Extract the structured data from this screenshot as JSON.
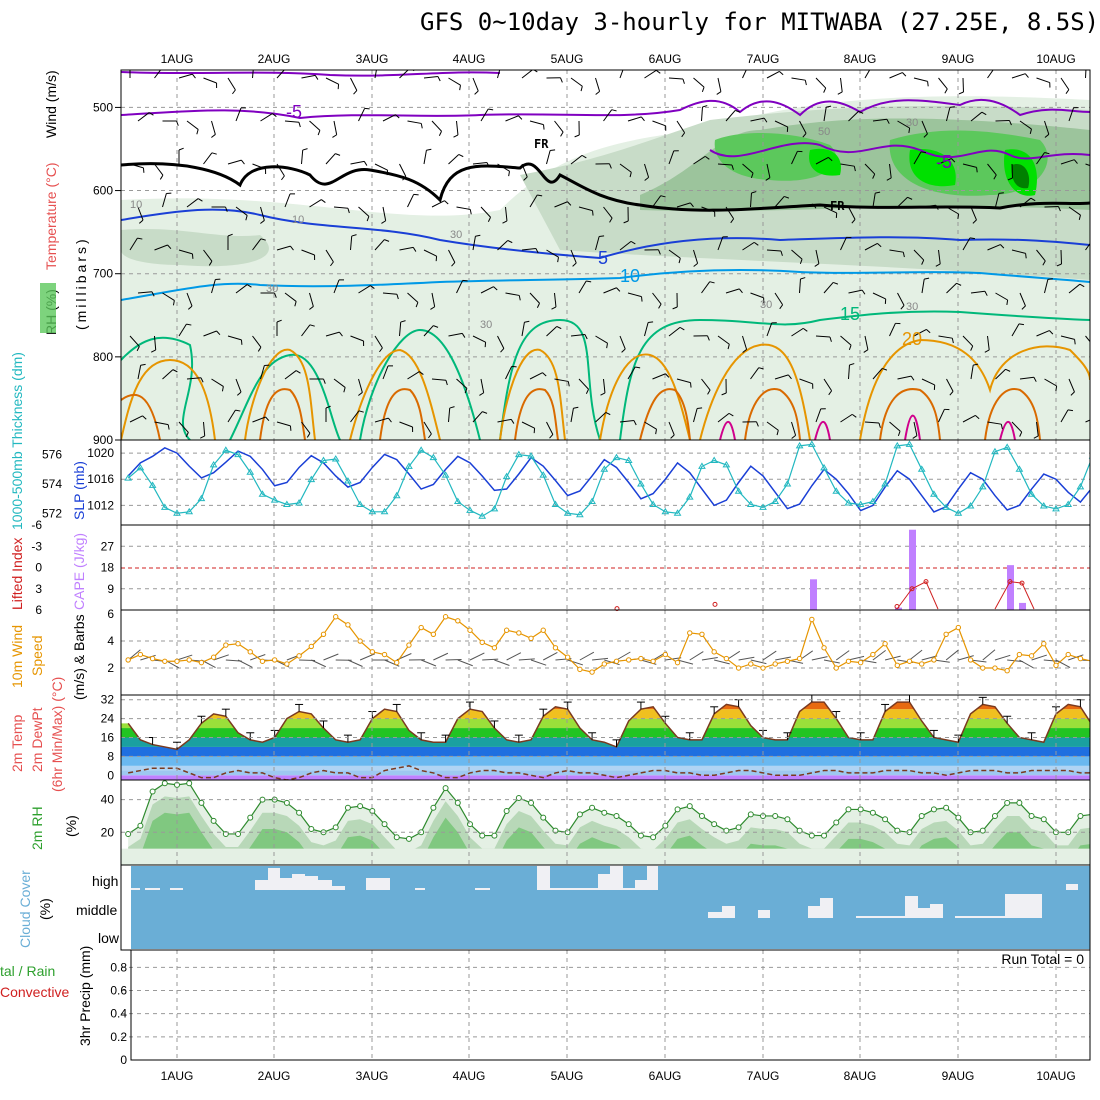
{
  "title": "GFS 0~10day 3-hourly for MITWABA (27.25E, 8.5S)",
  "days": [
    "1AUG",
    "2AUG",
    "3AUG",
    "4AUG",
    "5AUG",
    "6AUG",
    "7AUG",
    "8AUG",
    "9AUG",
    "10AUG"
  ],
  "colors": {
    "rh_fill": [
      "#e4f0e4",
      "#c8dcc8",
      "#9cc49c",
      "#5cc85c",
      "#00e000",
      "#008000"
    ],
    "temp_contours": {
      "-5": "#8000c0",
      "5": "#1a3fd6",
      "10": "#0099e6",
      "15": "#00b87a",
      "20": "#e69500",
      "25": "#d96a00",
      "30": "#d0008c"
    },
    "slp": "#1a3fd6",
    "thickness": "#22b8c0",
    "cape": "#c080ff",
    "li": "#d02020",
    "wind": "#e69500",
    "cloud": "#6aaed6",
    "rh2m": "#2ea02e"
  },
  "panels": {
    "upper": {
      "ylabel_parts": [
        "RH (%)",
        "Temperature (°C)",
        "Wind (m/s)"
      ],
      "ylabel_units": "(millibars)",
      "yticks": [
        500,
        600,
        700,
        800,
        900
      ],
      "contour_labels": [
        "-5",
        "-5",
        "5",
        "10",
        "15",
        "20",
        "FR",
        "FR",
        "10",
        "10",
        "30",
        "30",
        "30",
        "30",
        "30",
        "50",
        "30"
      ]
    },
    "thickness_slp": {
      "left_label": "1000-500mb Thickness (dm)",
      "right_label": "SLP (mb)",
      "thick_ticks": [
        "576",
        "574",
        "572"
      ],
      "slp_ticks": [
        "1020",
        "1016",
        "1012"
      ]
    },
    "cape_li": {
      "left_label": "Lifted Index",
      "right_label": "CAPE (J/kg)",
      "li_ticks": [
        "-6",
        "-3",
        "0",
        "3",
        "6"
      ],
      "cape_ticks": [
        "27",
        "18",
        "9"
      ]
    },
    "wind": {
      "label_parts": [
        "10m Wind",
        "Speed",
        "(m/s) & Barbs"
      ],
      "yticks": [
        "6",
        "4",
        "2"
      ]
    },
    "temp2m": {
      "label_parts": [
        "2m Temp",
        "2m DewPt",
        "(6hr Min/Max) (°C)"
      ],
      "yticks": [
        "32",
        "24",
        "16",
        "8",
        "0"
      ]
    },
    "rh2m": {
      "label": "2m RH",
      "units": "(%)",
      "yticks": [
        "40",
        "20"
      ]
    },
    "cloud": {
      "label": "Cloud Cover",
      "units": "(%)",
      "levels": [
        "high",
        "middle",
        "low"
      ]
    },
    "precip": {
      "label_parts": [
        "tal / Rain",
        "Convective",
        "3hr Precip (mm)"
      ],
      "yticks": [
        "0.8",
        "0.6",
        "0.4",
        "0.2",
        "0"
      ],
      "run_total": "Run Total = 0"
    }
  },
  "chart_data": [
    {
      "type": "line",
      "title": "SLP (mb)",
      "x": "3-hourly steps from 31 Jul 12Z to 10 Aug 06Z (80 steps)",
      "ylim": [
        1009,
        1022
      ],
      "series": [
        {
          "name": "SLP",
          "values": [
            1016.5,
            1018.5,
            1019.5,
            1020.8,
            1020.0,
            1018.0,
            1016.2,
            1017.0,
            1018.6,
            1020.3,
            1019.5,
            1017.5,
            1015.0,
            1015.5,
            1017.8,
            1019.6,
            1018.5,
            1016.5,
            1014.8,
            1015.5,
            1017.8,
            1019.8,
            1019.0,
            1016.8,
            1014.5,
            1015.2,
            1017.5,
            1019.5,
            1018.5,
            1016.5,
            1014.3,
            1014.5,
            1016.8,
            1019.3,
            1018.0,
            1015.8,
            1013.5,
            1014.2,
            1016.5,
            1019.0,
            1017.8,
            1015.5,
            1013.0,
            1013.8,
            1016.0,
            1018.5,
            1017.0,
            1014.5,
            1012.0,
            1012.8,
            1015.5,
            1018.0,
            1016.5,
            1014.0,
            1011.5,
            1012.2,
            1015.0,
            1017.5,
            1016.0,
            1013.8,
            1011.2,
            1012.0,
            1014.8,
            1017.3,
            1016.0,
            1013.5,
            1011.0,
            1011.8,
            1014.5,
            1017.0,
            1016.0,
            1013.5,
            1011.3,
            1012.0,
            1014.5,
            1016.8,
            1016.0,
            1014.0,
            1012.5,
            1014.8
          ]
        }
      ]
    },
    {
      "type": "line",
      "title": "1000-500mb Thickness (dm)",
      "x": "3-hourly steps from 31 Jul 12Z to 10 Aug 06Z (80 steps)",
      "ylim": [
        571.2,
        577.0
      ],
      "series": [
        {
          "name": "Thickness",
          "values": [
            574.4,
            575.1,
            573.9,
            572.4,
            572.0,
            572.1,
            573.0,
            575.3,
            576.3,
            576.0,
            574.8,
            573.3,
            572.9,
            572.6,
            572.7,
            574.3,
            575.6,
            575.7,
            574.2,
            572.6,
            572.1,
            572.1,
            573.2,
            575.2,
            576.3,
            575.8,
            574.6,
            572.8,
            572.2,
            571.8,
            572.3,
            574.5,
            576.0,
            575.9,
            574.6,
            572.6,
            572.0,
            571.9,
            572.8,
            575.0,
            575.8,
            575.6,
            574.0,
            572.6,
            572.1,
            572.0,
            573.1,
            575.2,
            575.6,
            575.3,
            573.5,
            572.6,
            572.4,
            572.8,
            574.0,
            576.6,
            576.7,
            575.1,
            573.5,
            572.7,
            572.6,
            572.8,
            574.0,
            576.6,
            576.7,
            575.0,
            573.3,
            572.4,
            572.0,
            572.5,
            573.8,
            576.2,
            576.5,
            575.0,
            573.3,
            572.5,
            572.3,
            572.6,
            573.8,
            575.9
          ]
        }
      ]
    },
    {
      "type": "bar",
      "title": "CAPE (J/kg)",
      "categories": [
        "7AUG 12Z",
        "8AUG 12Z",
        "9AUG 06Z",
        "9AUG 12Z",
        "9AUG 15Z"
      ],
      "ylim": [
        0,
        36
      ],
      "series": [
        {
          "name": "CAPE",
          "values": [
            13,
            34,
            1,
            19,
            3
          ]
        }
      ]
    },
    {
      "type": "line",
      "title": "Lifted Index",
      "categories": [
        "5AUG 12Z",
        "6AUG 12Z",
        "8AUG 09Z",
        "8AUG 12Z",
        "8AUG 15Z",
        "9AUG 12Z",
        "9AUG 15Z"
      ],
      "ylim": [
        6,
        -6
      ],
      "series": [
        {
          "name": "LI",
          "values": [
            5.8,
            5.2,
            5.5,
            3.0,
            2.0,
            2.0,
            2.2
          ]
        }
      ]
    },
    {
      "type": "line",
      "title": "10m Wind Speed (m/s)",
      "x": "3-hourly steps",
      "ylim": [
        0,
        6
      ],
      "series": [
        {
          "name": "Speed",
          "values": [
            2.6,
            3.0,
            2.7,
            2.5,
            2.5,
            2.6,
            2.4,
            2.8,
            3.7,
            3.8,
            3.2,
            2.5,
            2.6,
            2.3,
            2.9,
            3.6,
            4.5,
            5.8,
            5.2,
            4.0,
            3.2,
            3.0,
            2.4,
            3.7,
            5.0,
            4.5,
            5.8,
            5.5,
            4.8,
            3.9,
            3.5,
            4.8,
            4.6,
            4.2,
            4.8,
            3.5,
            2.8,
            1.9,
            1.7,
            2.3,
            2.5,
            2.6,
            2.7,
            2.5,
            3.0,
            2.4,
            4.6,
            4.5,
            3.2,
            2.7,
            2.0,
            2.3,
            2.0,
            2.3,
            2.5,
            2.7,
            5.6,
            3.5,
            2.0,
            2.5,
            2.4,
            3.0,
            3.8,
            2.2,
            2.5,
            2.3,
            2.6,
            4.5,
            5.0,
            2.6,
            2.0,
            2.0,
            1.8,
            3.0,
            2.9,
            3.8,
            2.2,
            3.0,
            2.7,
            2.5
          ]
        }
      ]
    },
    {
      "type": "area",
      "title": "2m Temp (°C)",
      "x": "3-hourly steps",
      "ylim": [
        -2,
        34
      ],
      "series": [
        {
          "name": "2m Temp",
          "values": [
            22,
            15,
            13,
            12,
            11,
            15,
            22,
            26,
            25,
            18,
            15,
            14,
            16,
            24,
            27,
            26,
            20,
            15,
            14,
            15,
            24,
            28,
            27,
            19,
            15,
            14,
            14,
            24,
            28,
            27,
            20,
            15,
            14,
            15,
            25,
            29,
            28,
            20,
            15,
            14,
            12,
            23,
            28,
            29,
            22,
            16,
            15,
            15,
            26,
            30,
            29,
            21,
            16,
            15,
            15,
            27,
            31,
            31,
            24,
            16,
            15,
            15,
            27,
            31,
            31,
            23,
            16,
            15,
            14,
            26,
            30,
            29,
            22,
            16,
            15,
            14,
            26,
            30,
            29,
            21
          ]
        },
        {
          "name": "2m DewPt",
          "values": [
            1,
            2,
            3,
            3,
            3,
            1,
            -1,
            -1,
            1,
            2,
            1,
            1,
            -1,
            -2,
            -1,
            1,
            2,
            1,
            1,
            -1,
            -1,
            2,
            3,
            4,
            2,
            1,
            -1,
            -1,
            1,
            2,
            2,
            1,
            1,
            0,
            -1,
            1,
            2,
            1,
            1,
            0,
            -1,
            0,
            1,
            2,
            2,
            1,
            1,
            0,
            0,
            1,
            2,
            2,
            1,
            0,
            0,
            0,
            1,
            2,
            2,
            1,
            1,
            1,
            2,
            2,
            2,
            1,
            1,
            0,
            1,
            2,
            2,
            2,
            1,
            1,
            2,
            2,
            2,
            2,
            1,
            1
          ]
        }
      ]
    },
    {
      "type": "line",
      "title": "2m RH (%)",
      "x": "3-hourly steps",
      "ylim": [
        0,
        52
      ],
      "series": [
        {
          "name": "2m RH",
          "values": [
            19,
            24,
            45,
            50,
            49,
            50,
            38,
            27,
            19,
            19,
            29,
            40,
            40,
            38,
            32,
            22,
            20,
            23,
            35,
            36,
            33,
            25,
            17,
            16,
            20,
            35,
            47,
            38,
            25,
            18,
            18,
            33,
            41,
            38,
            29,
            21,
            20,
            31,
            35,
            32,
            30,
            25,
            18,
            17,
            24,
            34,
            36,
            30,
            25,
            21,
            23,
            31,
            30,
            30,
            28,
            21,
            18,
            18,
            26,
            34,
            34,
            32,
            28,
            21,
            20,
            30,
            34,
            35,
            29,
            20,
            21,
            30,
            38,
            38,
            30,
            28,
            20,
            20,
            30,
            31
          ]
        }
      ]
    }
  ]
}
